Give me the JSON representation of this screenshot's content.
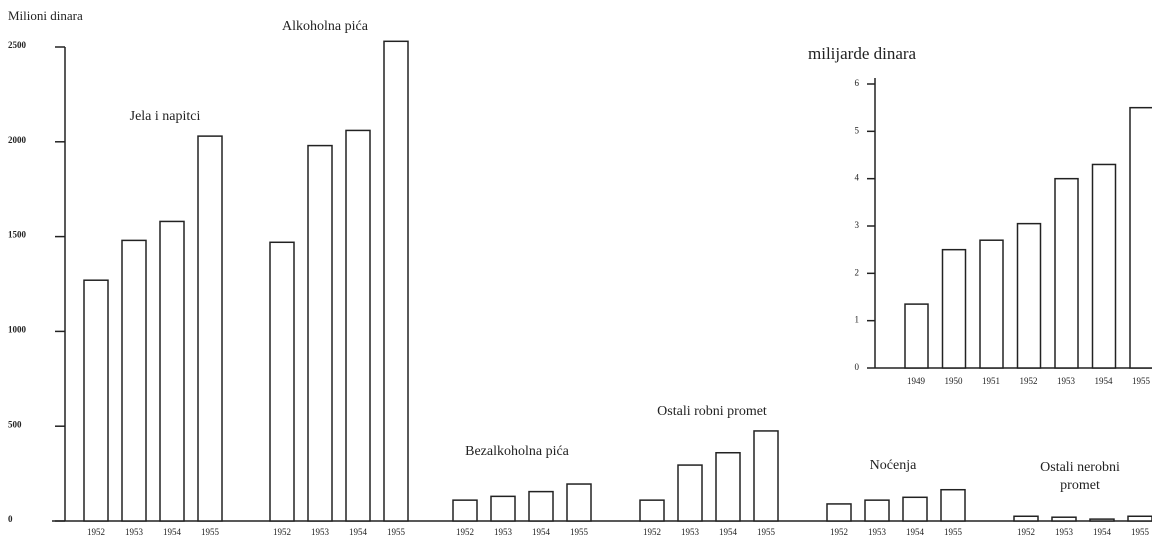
{
  "chart_data": [
    {
      "type": "bar",
      "ylabel": "Milioni dinara",
      "ylim": [
        0,
        2500
      ],
      "yticks": [
        0,
        500,
        1000,
        1500,
        2000,
        2500
      ],
      "color": "#ffffff",
      "series": [
        {
          "name": "Jela i napitci",
          "categories": [
            "1952",
            "1953",
            "1954",
            "1955"
          ],
          "values": [
            1270,
            1480,
            1580,
            2030
          ]
        },
        {
          "name": "Alkoholna pića",
          "categories": [
            "1952",
            "1953",
            "1954",
            "1955"
          ],
          "values": [
            1470,
            1980,
            2060,
            2530
          ]
        },
        {
          "name": "Bezalkoholna pića",
          "categories": [
            "1952",
            "1953",
            "1954",
            "1955"
          ],
          "values": [
            110,
            130,
            155,
            195
          ]
        },
        {
          "name": "Ostali robni promet",
          "categories": [
            "1952",
            "1953",
            "1954",
            "1955"
          ],
          "values": [
            110,
            295,
            360,
            475
          ]
        },
        {
          "name": "Noćenja",
          "categories": [
            "1952",
            "1953",
            "1954",
            "1955"
          ],
          "values": [
            90,
            110,
            125,
            165
          ]
        },
        {
          "name": "Ostali nerobni promet",
          "categories": [
            "1952",
            "1953",
            "1954",
            "1955"
          ],
          "values": [
            25,
            20,
            10,
            25
          ]
        }
      ]
    },
    {
      "type": "bar",
      "title": "milijarde dinara",
      "ylim": [
        0,
        6
      ],
      "yticks": [
        0,
        1,
        2,
        3,
        4,
        5,
        6
      ],
      "color": "#ffffff",
      "categories": [
        "1949",
        "1950",
        "1951",
        "1952",
        "1953",
        "1954",
        "1955"
      ],
      "values": [
        1.35,
        2.5,
        2.7,
        3.05,
        4.0,
        4.3,
        5.5
      ]
    }
  ]
}
